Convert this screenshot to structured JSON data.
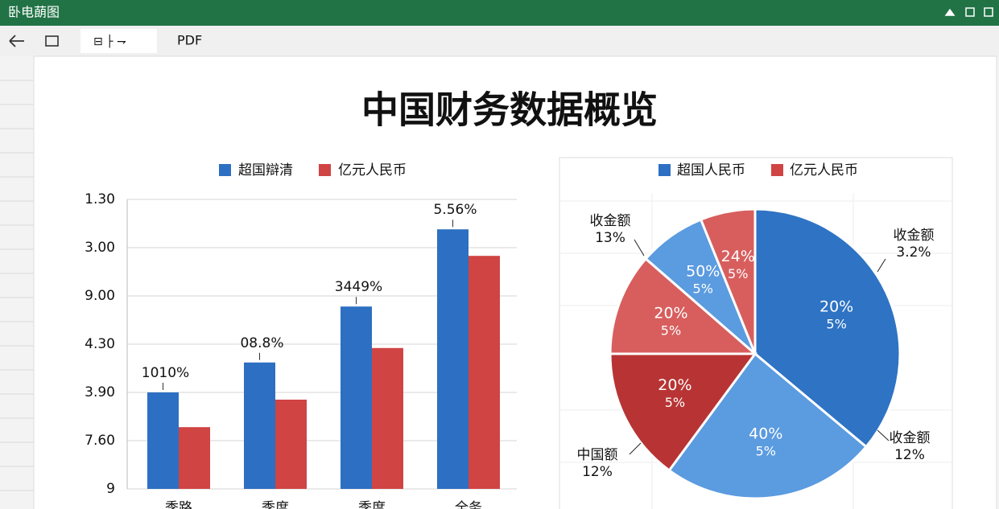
{
  "window": {
    "title": "卧电蓢图",
    "toolbar": [
      "PDF"
    ]
  },
  "page_title": "中国财务数据概览",
  "chart_data": [
    {
      "type": "bar",
      "categories": [
        "季路",
        "季度",
        "季度",
        "全务"
      ],
      "series": [
        {
          "name": "超国辯清",
          "color": "#2d6fc2",
          "values": [
            2.0,
            2.62,
            3.78,
            5.38
          ]
        },
        {
          "name": "亿元人民币",
          "color": "#d04444",
          "values": [
            1.28,
            1.85,
            2.92,
            4.83
          ]
        }
      ],
      "annotations": [
        "1010%",
        "08.8%",
        "3449%",
        "5.56%"
      ],
      "ylim": [
        0,
        6
      ],
      "yticks": [
        {
          "value": 0,
          "label": "9"
        },
        {
          "value": 1,
          "label": "7.60"
        },
        {
          "value": 2,
          "label": "3.90"
        },
        {
          "value": 3,
          "label": "4.30"
        },
        {
          "value": 4,
          "label": "9.00"
        },
        {
          "value": 5,
          "label": "3.00"
        },
        {
          "value": 6,
          "label": "1.30"
        }
      ],
      "grid": true
    },
    {
      "type": "pie",
      "legend": [
        {
          "name": "超国人民币",
          "color": "#2d6fc2"
        },
        {
          "name": "亿元人民币",
          "color": "#d04444"
        }
      ],
      "values": [
        36.1,
        24.0,
        14.9,
        11.4,
        7.5,
        6.1
      ],
      "colors": [
        "#2e73c4",
        "#5b9be0",
        "#b83434",
        "#d85e5e",
        "#5b9be0",
        "#d85e5e"
      ],
      "slice_labels": [
        [
          "20%",
          "5%"
        ],
        [
          "40%",
          "5%"
        ],
        [
          "20%",
          "5%"
        ],
        [
          "20%",
          "5%"
        ],
        [
          "50%",
          "5%"
        ],
        [
          "24%",
          "5%"
        ]
      ],
      "annotations": [
        [
          "收金额",
          "3.2%"
        ],
        [
          "收金额",
          "12%"
        ],
        [
          "中国额",
          "12%"
        ],
        [
          "收金额",
          "13%"
        ]
      ]
    }
  ]
}
